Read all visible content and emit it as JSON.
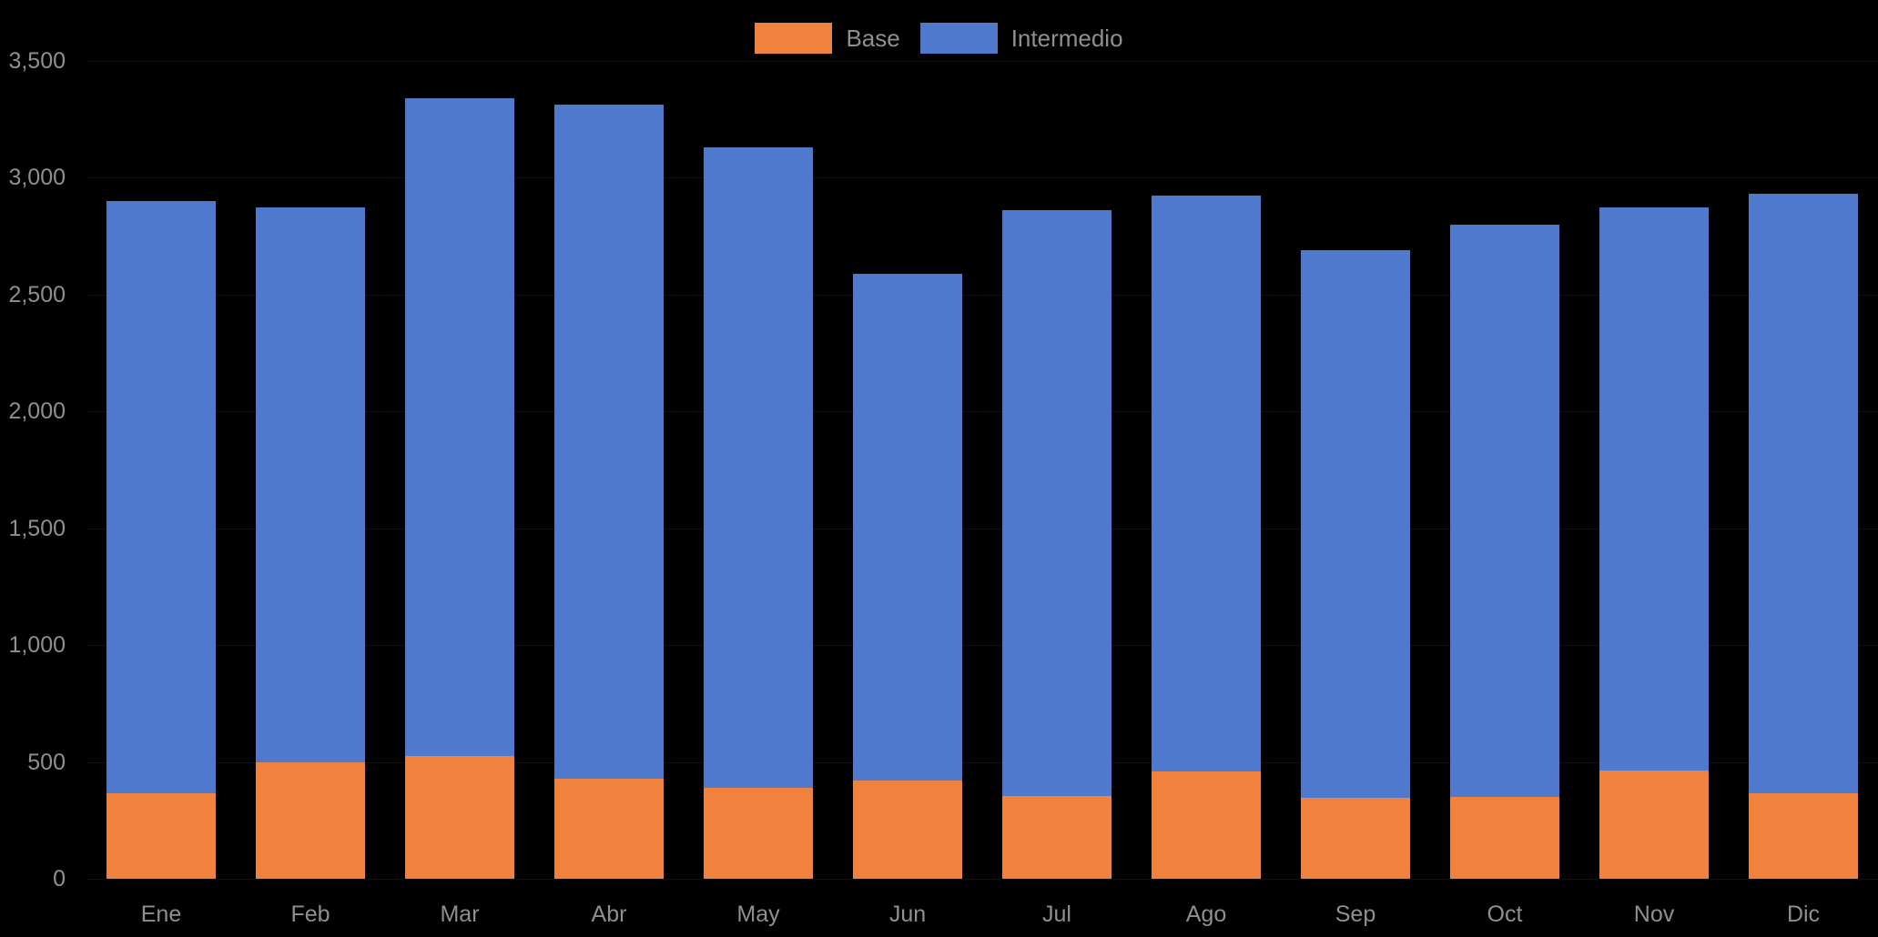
{
  "chart_data": {
    "type": "bar",
    "stacked": true,
    "title": "",
    "xlabel": "",
    "ylabel": "",
    "categories": [
      "Ene",
      "Feb",
      "Mar",
      "Abr",
      "May",
      "Jun",
      "Jul",
      "Ago",
      "Sep",
      "Oct",
      "Nov",
      "Dic"
    ],
    "series": [
      {
        "name": "Base",
        "color": "#F0823E",
        "values": [
          365,
          500,
          525,
          430,
          390,
          420,
          355,
          460,
          345,
          350,
          465,
          365
        ]
      },
      {
        "name": "Intermedio",
        "color": "#4E79CD",
        "values": [
          2535,
          2375,
          2815,
          2885,
          2740,
          2170,
          2505,
          2465,
          2345,
          2450,
          2410,
          2565
        ]
      }
    ],
    "totals": [
      2900,
      2875,
      3340,
      3315,
      3130,
      2590,
      2860,
      2925,
      2690,
      2800,
      2875,
      2930
    ],
    "ylim": [
      0,
      3500
    ],
    "ytick_step": 500,
    "ytick_labels": [
      "0",
      "500",
      "1,000",
      "1,500",
      "2,000",
      "2,500",
      "3,000",
      "3,500"
    ],
    "legend_position": "top-center",
    "grid": false,
    "background_color": "#000000",
    "text_color": "#8F8F8F"
  }
}
